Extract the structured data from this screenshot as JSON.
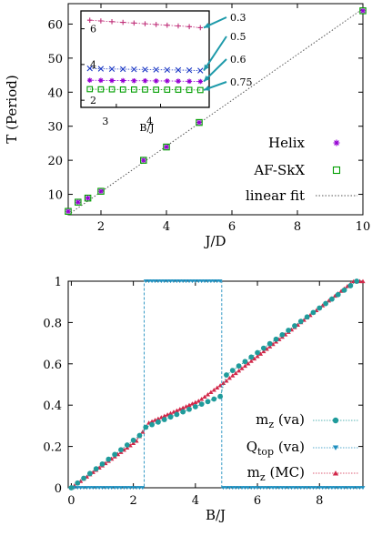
{
  "chart_data": [
    {
      "type": "scatter",
      "title": "",
      "xlabel": "J/D",
      "ylabel": "T (Period)",
      "xlim": [
        1,
        10
      ],
      "ylim": [
        4,
        66
      ],
      "xticks": [
        2,
        4,
        6,
        8,
        10
      ],
      "yticks": [
        10,
        20,
        30,
        40,
        50,
        60
      ],
      "grid": false,
      "legend_position": "right",
      "series": [
        {
          "name": "Helix",
          "marker": "asterisk",
          "color": "#9400d3",
          "x": [
            1.0,
            1.3,
            1.6,
            2.0,
            3.3,
            4.0,
            5.0,
            10.0
          ],
          "y": [
            5.0,
            7.7,
            8.9,
            10.9,
            20.0,
            23.9,
            31.1,
            63.9
          ]
        },
        {
          "name": "AF-SkX",
          "marker": "square",
          "color": "#009e00",
          "x": [
            1.0,
            1.3,
            1.6,
            2.0,
            3.3,
            4.0,
            5.0,
            10.0
          ],
          "y": [
            5.0,
            7.7,
            8.9,
            10.9,
            20.0,
            23.9,
            31.1,
            63.9
          ]
        },
        {
          "name": "linear fit",
          "style": "dotted",
          "color": "#555555",
          "x": [
            1,
            10
          ],
          "y": [
            4.0,
            64.5
          ]
        }
      ],
      "inset": {
        "xlabel": "B/J",
        "xticks": [
          3,
          4
        ],
        "yticks": [
          2,
          4,
          6
        ],
        "xlim": [
          2.2,
          5.1
        ],
        "ylim": [
          1.6,
          7.0
        ],
        "annotations": [
          "0.3",
          "0.5",
          "0.6",
          "0.75"
        ],
        "annotation_color": "#1e9aaa",
        "series": [
          {
            "name": "0.3",
            "marker": "plus",
            "color": "#c0307a",
            "x": [
              2.4,
              2.65,
              2.9,
              3.15,
              3.4,
              3.65,
              3.9,
              4.15,
              4.4,
              4.65,
              4.9
            ],
            "y": [
              6.48,
              6.44,
              6.4,
              6.36,
              6.32,
              6.28,
              6.24,
              6.2,
              6.16,
              6.12,
              6.06
            ]
          },
          {
            "name": "0.5",
            "marker": "cross",
            "color": "#1a37c4",
            "x": [
              2.4,
              2.65,
              2.9,
              3.15,
              3.4,
              3.65,
              3.9,
              4.15,
              4.4,
              4.65,
              4.9
            ],
            "y": [
              3.78,
              3.76,
              3.75,
              3.74,
              3.73,
              3.72,
              3.71,
              3.7,
              3.69,
              3.68,
              3.66
            ]
          },
          {
            "name": "0.6",
            "marker": "asterisk",
            "color": "#9400d3",
            "x": [
              2.4,
              2.65,
              2.9,
              3.15,
              3.4,
              3.65,
              3.9,
              4.15,
              4.4,
              4.65,
              4.9
            ],
            "y": [
              3.12,
              3.11,
              3.1,
              3.1,
              3.09,
              3.09,
              3.08,
              3.08,
              3.07,
              3.06,
              3.05
            ]
          },
          {
            "name": "0.75",
            "marker": "square",
            "color": "#009e00",
            "x": [
              2.4,
              2.65,
              2.9,
              3.15,
              3.4,
              3.65,
              3.9,
              4.15,
              4.4,
              4.65,
              4.9
            ],
            "y": [
              2.62,
              2.61,
              2.61,
              2.6,
              2.6,
              2.6,
              2.59,
              2.59,
              2.59,
              2.58,
              2.57
            ]
          }
        ]
      }
    },
    {
      "type": "line",
      "title": "",
      "xlabel": "B/J",
      "ylabel": "",
      "xlim": [
        -0.1,
        9.4
      ],
      "ylim": [
        0,
        1
      ],
      "xticks": [
        0,
        2,
        4,
        6,
        8
      ],
      "yticks": [
        0,
        0.2,
        0.4,
        0.6,
        0.8,
        1
      ],
      "ytick_labels": [
        "0",
        "0.2",
        "0.4",
        "0.6",
        "0.8",
        "1"
      ],
      "grid": false,
      "legend_position": "right",
      "series": [
        {
          "name": "m_z (va)",
          "marker": "circle",
          "color": "#1f9b9b"
        },
        {
          "name": "Q_top (va)",
          "marker": "triangle-down",
          "color": "#1e8fbf"
        },
        {
          "name": "m_z (MC)",
          "marker": "triangle-up",
          "color": "#d2284a"
        }
      ],
      "legend_labels": [
        {
          "main": "m",
          "sub": "z",
          "rest": " (va)"
        },
        {
          "main": "Q",
          "sub": "top",
          "rest": " (va)"
        },
        {
          "main": "m",
          "sub": "z",
          "rest": " (MC)"
        }
      ],
      "qtop_transitions": [
        2.35,
        4.85
      ]
    }
  ]
}
